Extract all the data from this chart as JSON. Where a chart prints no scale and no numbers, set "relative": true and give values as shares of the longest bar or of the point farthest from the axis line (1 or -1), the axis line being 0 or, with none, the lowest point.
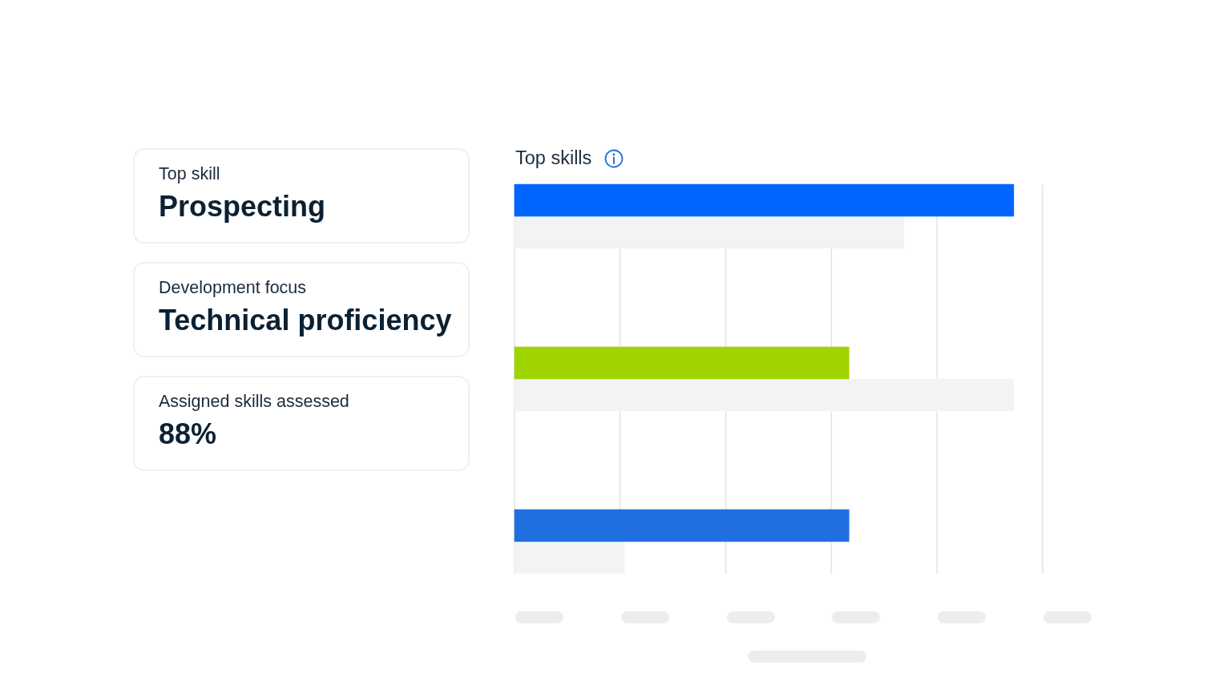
{
  "chart_data": [
    {
      "type": "other",
      "annotations": [
        "Top skill",
        "Prospecting",
        "Development focus",
        "Technical proficiency",
        "Assigned skills assessed",
        "88%"
      ]
    },
    {
      "type": "bar",
      "title": "Top skills",
      "orientation": "horizontal",
      "relative": true,
      "categories": [
        null,
        null,
        null
      ],
      "series": [
        {
          "colors": [
            "#0066ff",
            "#a0d400",
            "#1f6fe0"
          ],
          "values": [
            1,
            0.67,
            0.67
          ]
        },
        {
          "color": "#f2f3f5",
          "values": [
            0.78,
            1,
            0.22
          ]
        }
      ],
      "grid": "x"
    }
  ]
}
